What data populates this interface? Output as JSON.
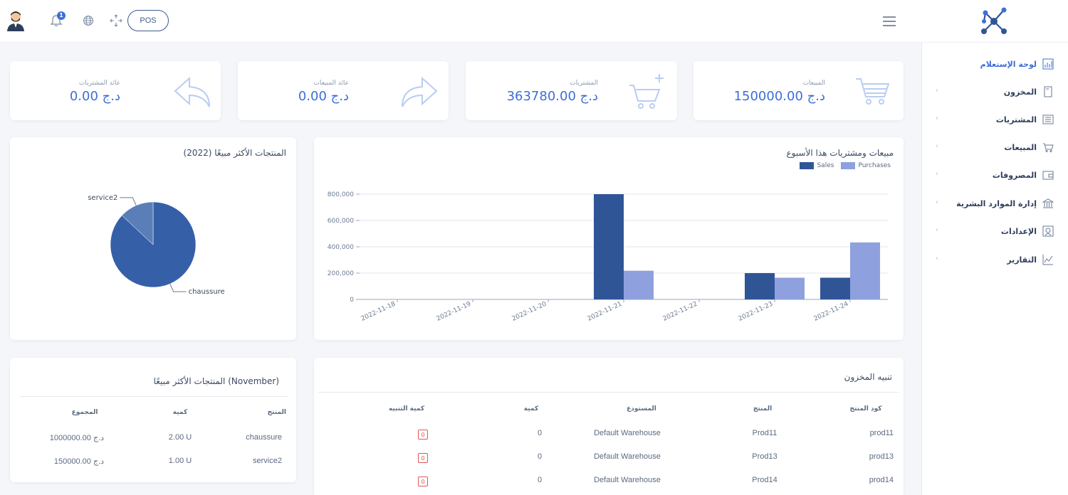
{
  "topbar": {
    "notifications_count": "1",
    "pos_label": "POS"
  },
  "sidebar": {
    "items": [
      {
        "label": "لوحة الإستعلام",
        "icon": "chart-icon",
        "active": true
      },
      {
        "label": "المخزون",
        "icon": "file-icon"
      },
      {
        "label": "المشتريات",
        "icon": "list-icon"
      },
      {
        "label": "المبيعات",
        "icon": "cart-icon"
      },
      {
        "label": "المصروفات",
        "icon": "wallet-icon"
      },
      {
        "label": "إدارة الموارد البشرية",
        "icon": "bank-icon"
      },
      {
        "label": "الإعدادات",
        "icon": "settings-icon"
      },
      {
        "label": "التقارير",
        "icon": "report-icon"
      }
    ],
    "chevron": "‹"
  },
  "stats": [
    {
      "label": "المبيعات",
      "value": "150000.00 د.ج",
      "icon": "cart-icon"
    },
    {
      "label": "المشتريات",
      "value": "363780.00 د.ج",
      "icon": "cart-plus-icon"
    },
    {
      "label": "عائد المبيعات",
      "value": "0.00 د.ج",
      "icon": "forward-arrow-icon"
    },
    {
      "label": "عائد المشتريات",
      "value": "0.00 د.ج",
      "icon": "reply-arrow-icon"
    }
  ],
  "weekly_chart": {
    "title": "مبيعات ومشتريات هذا الأسبوع",
    "legend": [
      "Sales",
      "Purchases"
    ],
    "y_ticks": [
      "800,000",
      "600,000",
      "400,000",
      "200,000",
      "0"
    ]
  },
  "pie_chart": {
    "title": "المنتجات الأكثر مبيعًا (2022)",
    "labels": [
      "service2",
      "chaussure"
    ]
  },
  "top_products": {
    "title": "المنتجات الأكثر مبيعًا (November)",
    "headers": [
      "المنتج",
      "كمية",
      "المجموع"
    ],
    "rows": [
      [
        "chaussure",
        "2.00 U",
        "1000000.00 د.ج"
      ],
      [
        "service2",
        "1.00 U",
        "150000.00 د.ج"
      ]
    ]
  },
  "stock_alert": {
    "title": "تنبيه المخزون",
    "headers": [
      "كود المنتج",
      "المنتج",
      "المستودع",
      "كمية",
      "كمية التنبيه"
    ],
    "rows": [
      [
        "prod11",
        "Prod11",
        "Default Warehouse",
        "0",
        "0"
      ],
      [
        "prod13",
        "Prod13",
        "Default Warehouse",
        "0",
        "0"
      ],
      [
        "prod14",
        "Prod14",
        "Default Warehouse",
        "0",
        "0"
      ]
    ]
  },
  "colors": {
    "accent": "#3e6fd6",
    "sales": "#2f5597",
    "purchases": "#8fa0de",
    "pie_main": "#3560a8",
    "pie_secondary": "#5a7fb8"
  },
  "chart_data": [
    {
      "type": "bar",
      "title": "مبيعات ومشتريات هذا الأسبوع",
      "categories": [
        "2022-11-18",
        "2022-11-19",
        "2022-11-20",
        "2022-11-21",
        "2022-11-22",
        "2022-11-23",
        "2022-11-24"
      ],
      "series": [
        {
          "name": "Sales",
          "values": [
            0,
            0,
            0,
            800000,
            0,
            200000,
            165000
          ]
        },
        {
          "name": "Purchases",
          "values": [
            0,
            0,
            0,
            218000,
            0,
            165000,
            433000
          ]
        }
      ],
      "ylim": [
        0,
        800000
      ],
      "grid": true,
      "legend": "top-right"
    },
    {
      "type": "pie",
      "title": "المنتجات الأكثر مبيعًا (2022)",
      "labels": [
        "chaussure",
        "service2"
      ],
      "values": [
        87,
        13
      ]
    }
  ]
}
